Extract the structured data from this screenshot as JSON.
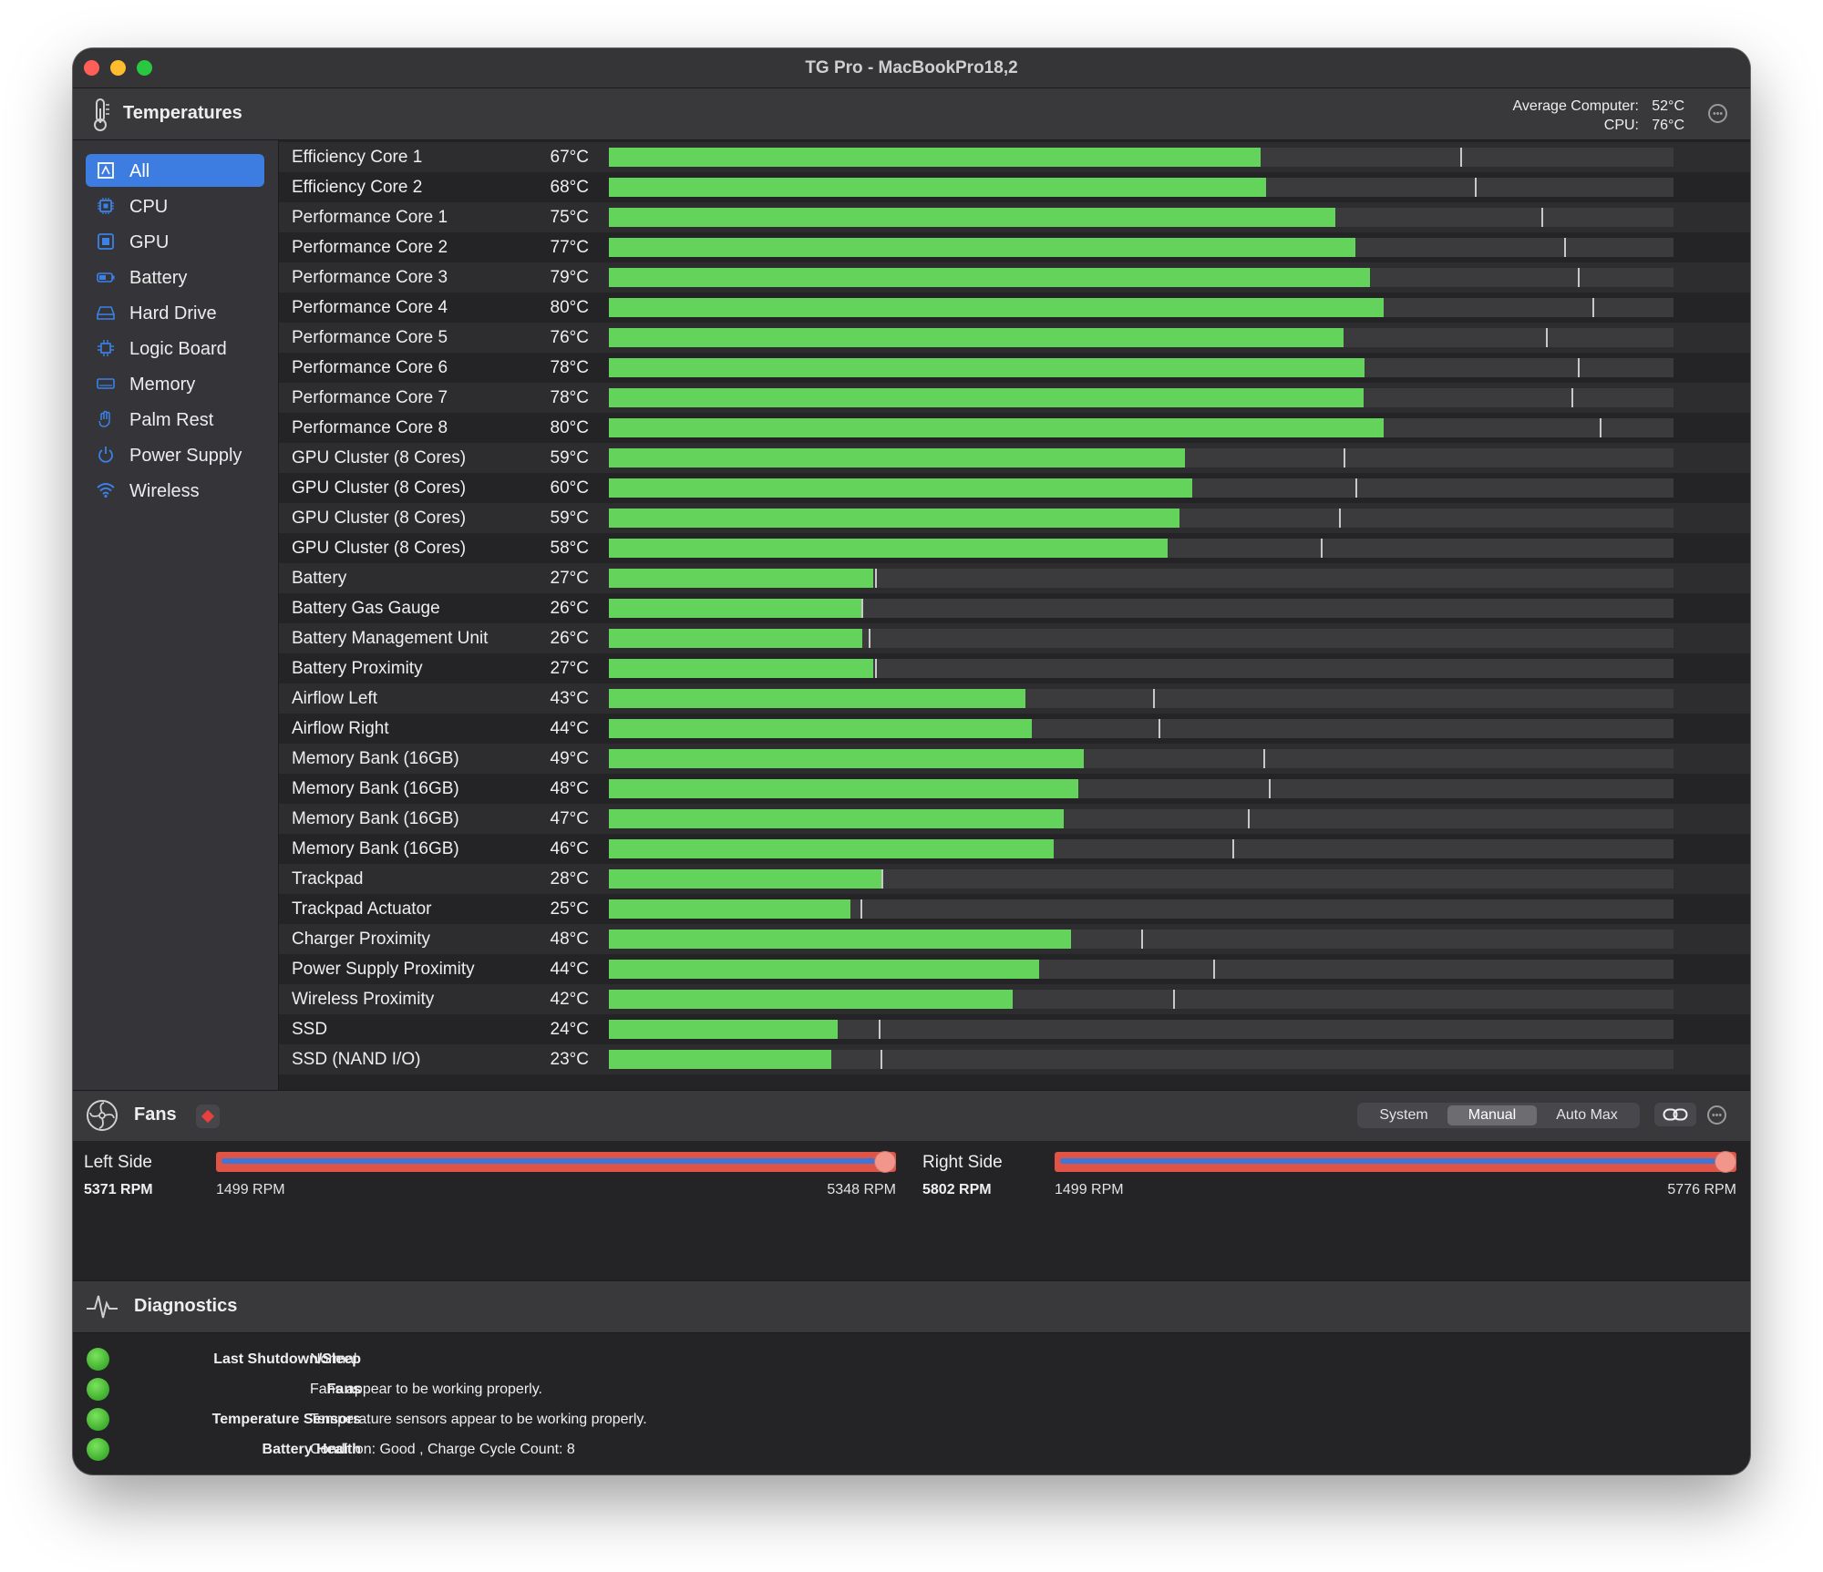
{
  "window": {
    "title": "TG Pro - MacBookPro18,2"
  },
  "temperatures": {
    "title": "Temperatures",
    "average_computer_label": "Average Computer:",
    "average_computer_value": "52°C",
    "cpu_label": "CPU:",
    "cpu_value": "76°C"
  },
  "sidebar": {
    "items": [
      {
        "label": "All",
        "icon": "all-icon",
        "selected": true
      },
      {
        "label": "CPU",
        "icon": "cpu-icon"
      },
      {
        "label": "GPU",
        "icon": "gpu-icon"
      },
      {
        "label": "Battery",
        "icon": "battery-icon"
      },
      {
        "label": "Hard Drive",
        "icon": "hard-drive-icon"
      },
      {
        "label": "Logic Board",
        "icon": "logic-board-icon"
      },
      {
        "label": "Memory",
        "icon": "memory-icon"
      },
      {
        "label": "Palm Rest",
        "icon": "palm-rest-icon"
      },
      {
        "label": "Power Supply",
        "icon": "power-icon"
      },
      {
        "label": "Wireless",
        "icon": "wifi-icon"
      }
    ]
  },
  "sensors": [
    {
      "name": "Efficiency Core 1",
      "temp": "67°C",
      "level": 0.612,
      "max_mark": 0.8
    },
    {
      "name": "Efficiency Core 2",
      "temp": "68°C",
      "level": 0.617,
      "max_mark": 0.813
    },
    {
      "name": "Performance Core 1",
      "temp": "75°C",
      "level": 0.682,
      "max_mark": 0.876
    },
    {
      "name": "Performance Core 2",
      "temp": "77°C",
      "level": 0.701,
      "max_mark": 0.897
    },
    {
      "name": "Performance Core 3",
      "temp": "79°C",
      "level": 0.715,
      "max_mark": 0.91
    },
    {
      "name": "Performance Core 4",
      "temp": "80°C",
      "level": 0.728,
      "max_mark": 0.924
    },
    {
      "name": "Performance Core 5",
      "temp": "76°C",
      "level": 0.69,
      "max_mark": 0.88
    },
    {
      "name": "Performance Core 6",
      "temp": "78°C",
      "level": 0.71,
      "max_mark": 0.91
    },
    {
      "name": "Performance Core 7",
      "temp": "78°C",
      "level": 0.709,
      "max_mark": 0.904
    },
    {
      "name": "Performance Core 8",
      "temp": "80°C",
      "level": 0.728,
      "max_mark": 0.931
    },
    {
      "name": "GPU Cluster (8 Cores)",
      "temp": "59°C",
      "level": 0.541,
      "max_mark": 0.69
    },
    {
      "name": "GPU Cluster (8 Cores)",
      "temp": "60°C",
      "level": 0.548,
      "max_mark": 0.701
    },
    {
      "name": "GPU Cluster (8 Cores)",
      "temp": "59°C",
      "level": 0.536,
      "max_mark": 0.686
    },
    {
      "name": "GPU Cluster (8 Cores)",
      "temp": "58°C",
      "level": 0.525,
      "max_mark": 0.669
    },
    {
      "name": "Battery",
      "temp": "27°C",
      "level": 0.248,
      "max_mark": 0.25
    },
    {
      "name": "Battery Gas Gauge",
      "temp": "26°C",
      "level": 0.237,
      "max_mark": 0.237
    },
    {
      "name": "Battery Management Unit",
      "temp": "26°C",
      "level": 0.238,
      "max_mark": 0.244
    },
    {
      "name": "Battery Proximity",
      "temp": "27°C",
      "level": 0.248,
      "max_mark": 0.25
    },
    {
      "name": "Airflow Left",
      "temp": "43°C",
      "level": 0.391,
      "max_mark": 0.511
    },
    {
      "name": "Airflow Right",
      "temp": "44°C",
      "level": 0.397,
      "max_mark": 0.516
    },
    {
      "name": "Memory Bank (16GB)",
      "temp": "49°C",
      "level": 0.446,
      "max_mark": 0.615
    },
    {
      "name": "Memory Bank (16GB)",
      "temp": "48°C",
      "level": 0.441,
      "max_mark": 0.62
    },
    {
      "name": "Memory Bank (16GB)",
      "temp": "47°C",
      "level": 0.427,
      "max_mark": 0.6
    },
    {
      "name": "Memory Bank (16GB)",
      "temp": "46°C",
      "level": 0.418,
      "max_mark": 0.586
    },
    {
      "name": "Trackpad",
      "temp": "28°C",
      "level": 0.256,
      "max_mark": 0.256
    },
    {
      "name": "Trackpad Actuator",
      "temp": "25°C",
      "level": 0.227,
      "max_mark": 0.236
    },
    {
      "name": "Charger Proximity",
      "temp": "48°C",
      "level": 0.434,
      "max_mark": 0.5
    },
    {
      "name": "Power Supply Proximity",
      "temp": "44°C",
      "level": 0.404,
      "max_mark": 0.568
    },
    {
      "name": "Wireless Proximity",
      "temp": "42°C",
      "level": 0.379,
      "max_mark": 0.53
    },
    {
      "name": "SSD",
      "temp": "24°C",
      "level": 0.215,
      "max_mark": 0.253
    },
    {
      "name": "SSD (NAND I/O)",
      "temp": "23°C",
      "level": 0.209,
      "max_mark": 0.255
    }
  ],
  "fans": {
    "title": "Fans",
    "modes": [
      "System",
      "Manual",
      "Auto Max"
    ],
    "active_mode": "Manual",
    "left": {
      "label": "Left Side",
      "rpm": "5371 RPM",
      "min": "1499 RPM",
      "max": "5348 RPM",
      "level": 1.0
    },
    "right": {
      "label": "Right Side",
      "rpm": "5802 RPM",
      "min": "1499 RPM",
      "max": "5776 RPM",
      "level": 1.0
    }
  },
  "diagnostics": {
    "title": "Diagnostics",
    "items": [
      {
        "label": "Last Shutdown/Sleep",
        "value": "Normal"
      },
      {
        "label": "Fans",
        "value": "Fans appear to be working properly."
      },
      {
        "label": "Temperature Sensors",
        "value": "Temperature sensors appear to be working properly."
      },
      {
        "label": "Battery Health",
        "value": "Condition: Good , Charge Cycle Count: 8"
      }
    ]
  },
  "colors": {
    "bar_fill": "#63d35c",
    "bar_track": "#3b3b3e",
    "accent": "#3d7de2",
    "slider_red": "#e05347",
    "status_ok": "#4cc63a"
  }
}
